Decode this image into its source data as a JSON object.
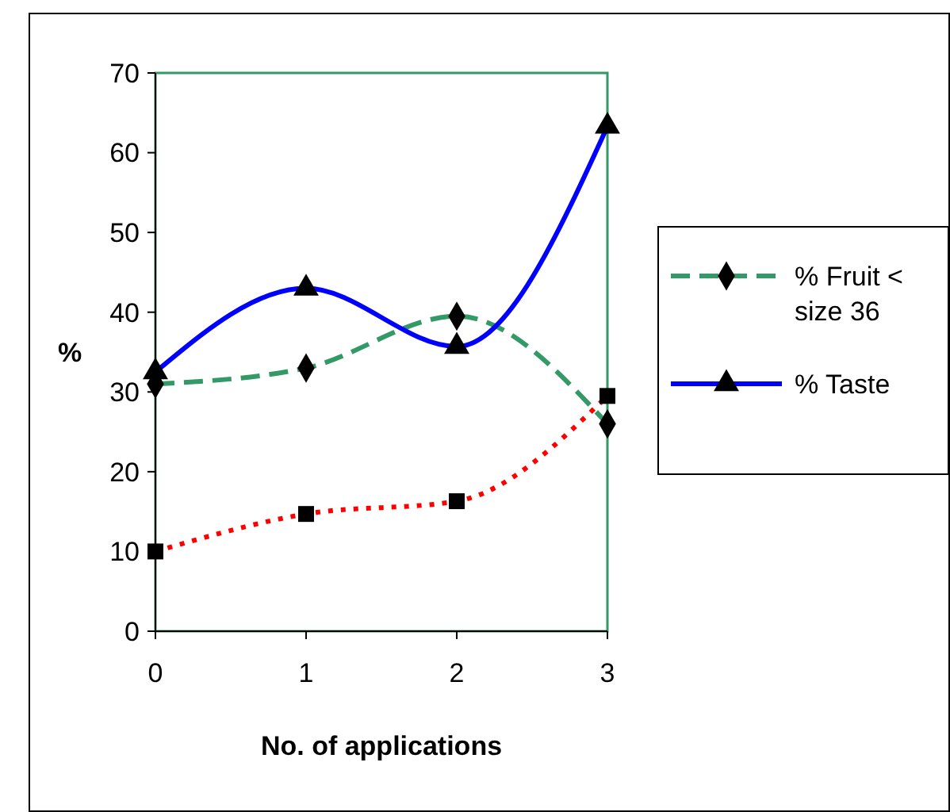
{
  "chart_data": {
    "type": "line",
    "xlabel": "No. of applications",
    "ylabel": "%",
    "x": [
      0,
      1,
      2,
      3
    ],
    "xlim": [
      0,
      3
    ],
    "xticks": [
      0,
      1,
      2,
      3
    ],
    "ylim": [
      0,
      70
    ],
    "yticks": [
      0,
      10,
      20,
      30,
      40,
      50,
      60,
      70
    ],
    "grid": false,
    "legend": "right",
    "series": [
      {
        "name": "% Fruit < size 36",
        "color": "#339966",
        "marker": "diamond",
        "line_style": "dashed",
        "values": [
          31,
          33,
          39.5,
          26
        ]
      },
      {
        "color": "#ff0000",
        "marker": "square",
        "line_style": "dotted",
        "values": [
          10,
          14.7,
          16.3,
          29.5
        ]
      },
      {
        "name": "% Taste",
        "color": "#0000ff",
        "marker": "triangle",
        "line_style": "solid",
        "values": [
          32.5,
          43,
          35.7,
          63.3
        ]
      }
    ]
  }
}
